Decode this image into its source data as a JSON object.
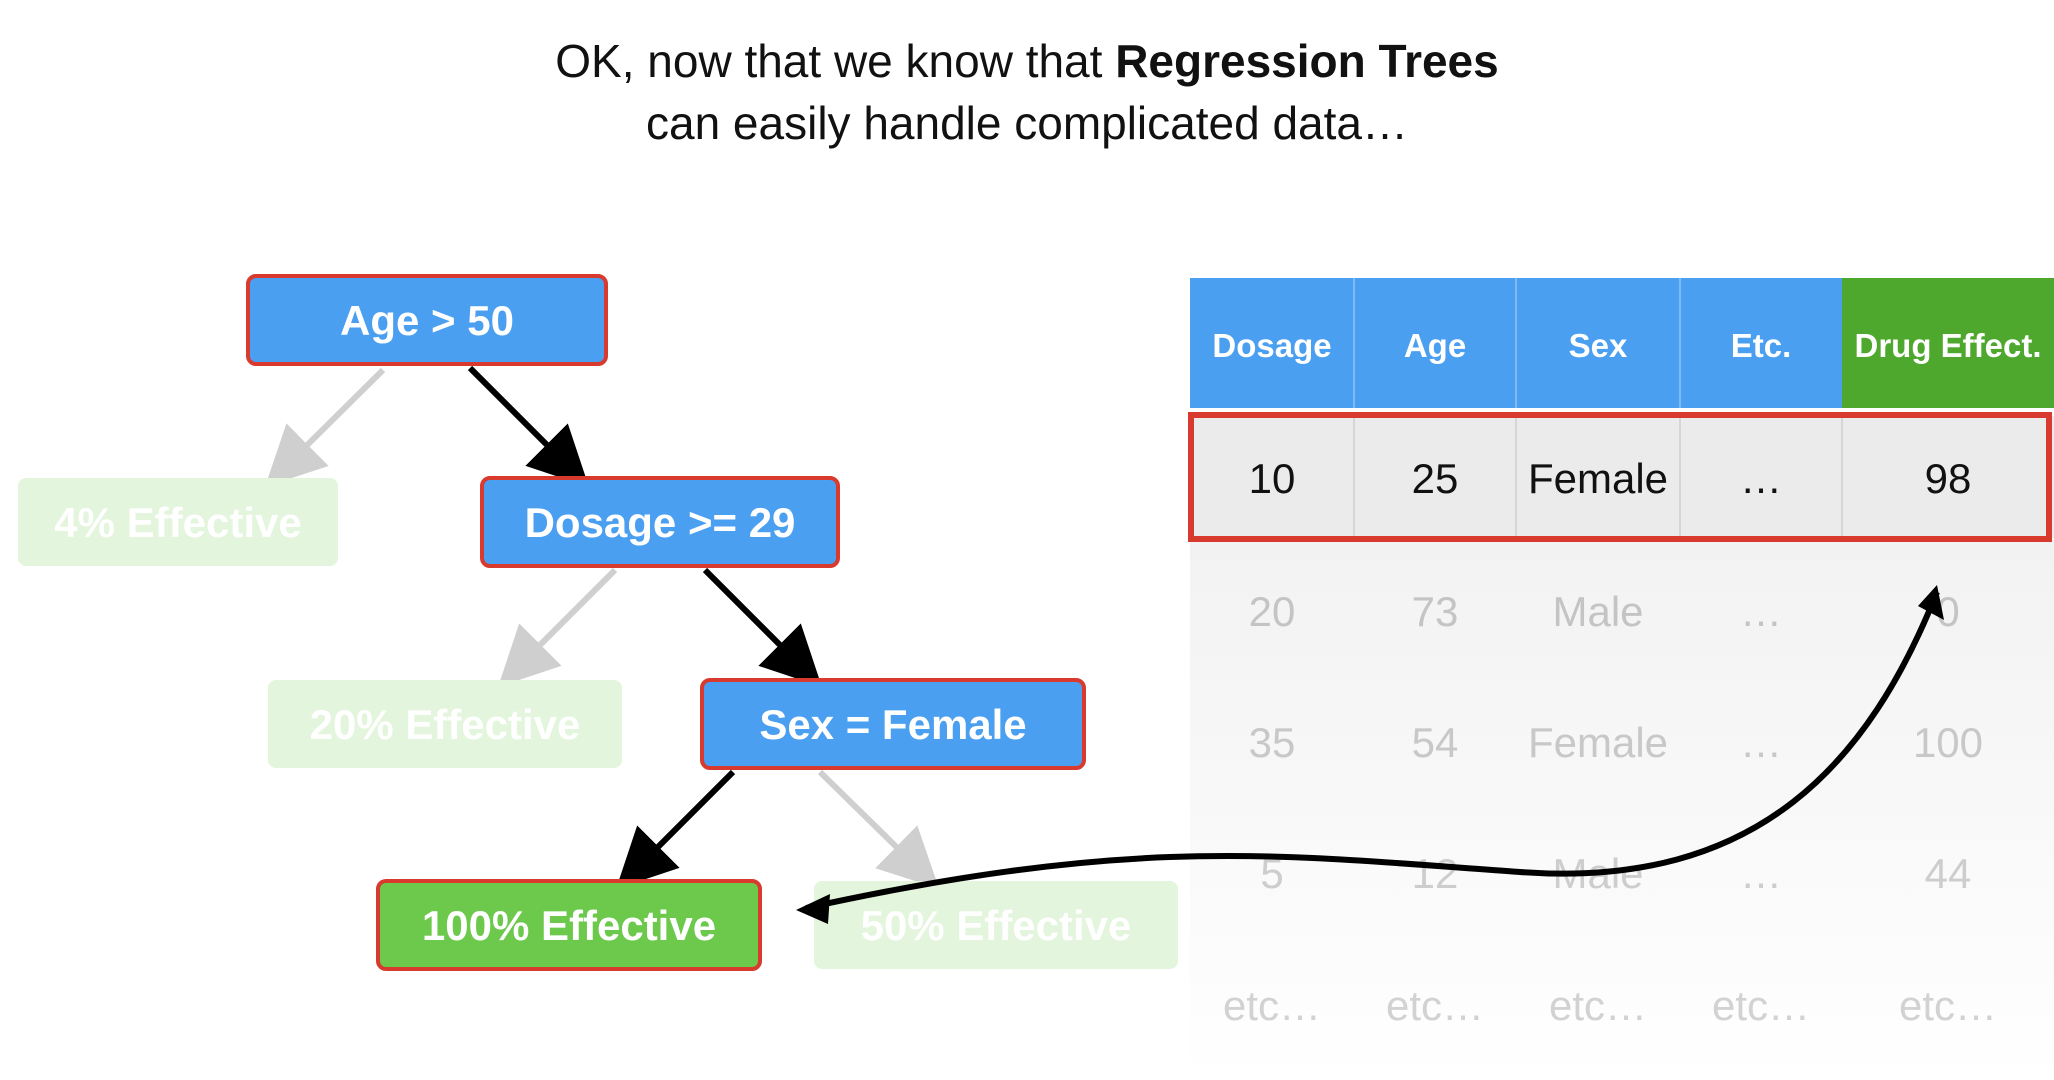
{
  "title": {
    "line1_plain": "OK, now that we know that ",
    "line1_bold": "Regression Trees",
    "line2": "can easily handle complicated data…"
  },
  "tree": {
    "root": "Age > 50",
    "leaf_left_1": "4% Effective",
    "node_2": "Dosage >= 29",
    "leaf_left_2": "20% Effective",
    "node_3": "Sex = Female",
    "leaf_true": "100% Effective",
    "leaf_false": "50% Effective"
  },
  "table": {
    "headers": [
      "Dosage",
      "Age",
      "Sex",
      "Etc.",
      "Drug Effect."
    ],
    "rows": [
      [
        "10",
        "25",
        "Female",
        "…",
        "98"
      ],
      [
        "20",
        "73",
        "Male",
        "…",
        "0"
      ],
      [
        "35",
        "54",
        "Female",
        "…",
        "100"
      ],
      [
        "5",
        "12",
        "Male",
        "…",
        "44"
      ],
      [
        "etc…",
        "etc…",
        "etc…",
        "etc…",
        "etc…"
      ]
    ],
    "highlighted_row": 0
  },
  "colors": {
    "node_blue": "#4a9ff0",
    "leaf_green": "#6cc94c",
    "header_green": "#4ea82e",
    "highlight_red": "#d83a2e",
    "faded_green": "#e3f5dc"
  }
}
